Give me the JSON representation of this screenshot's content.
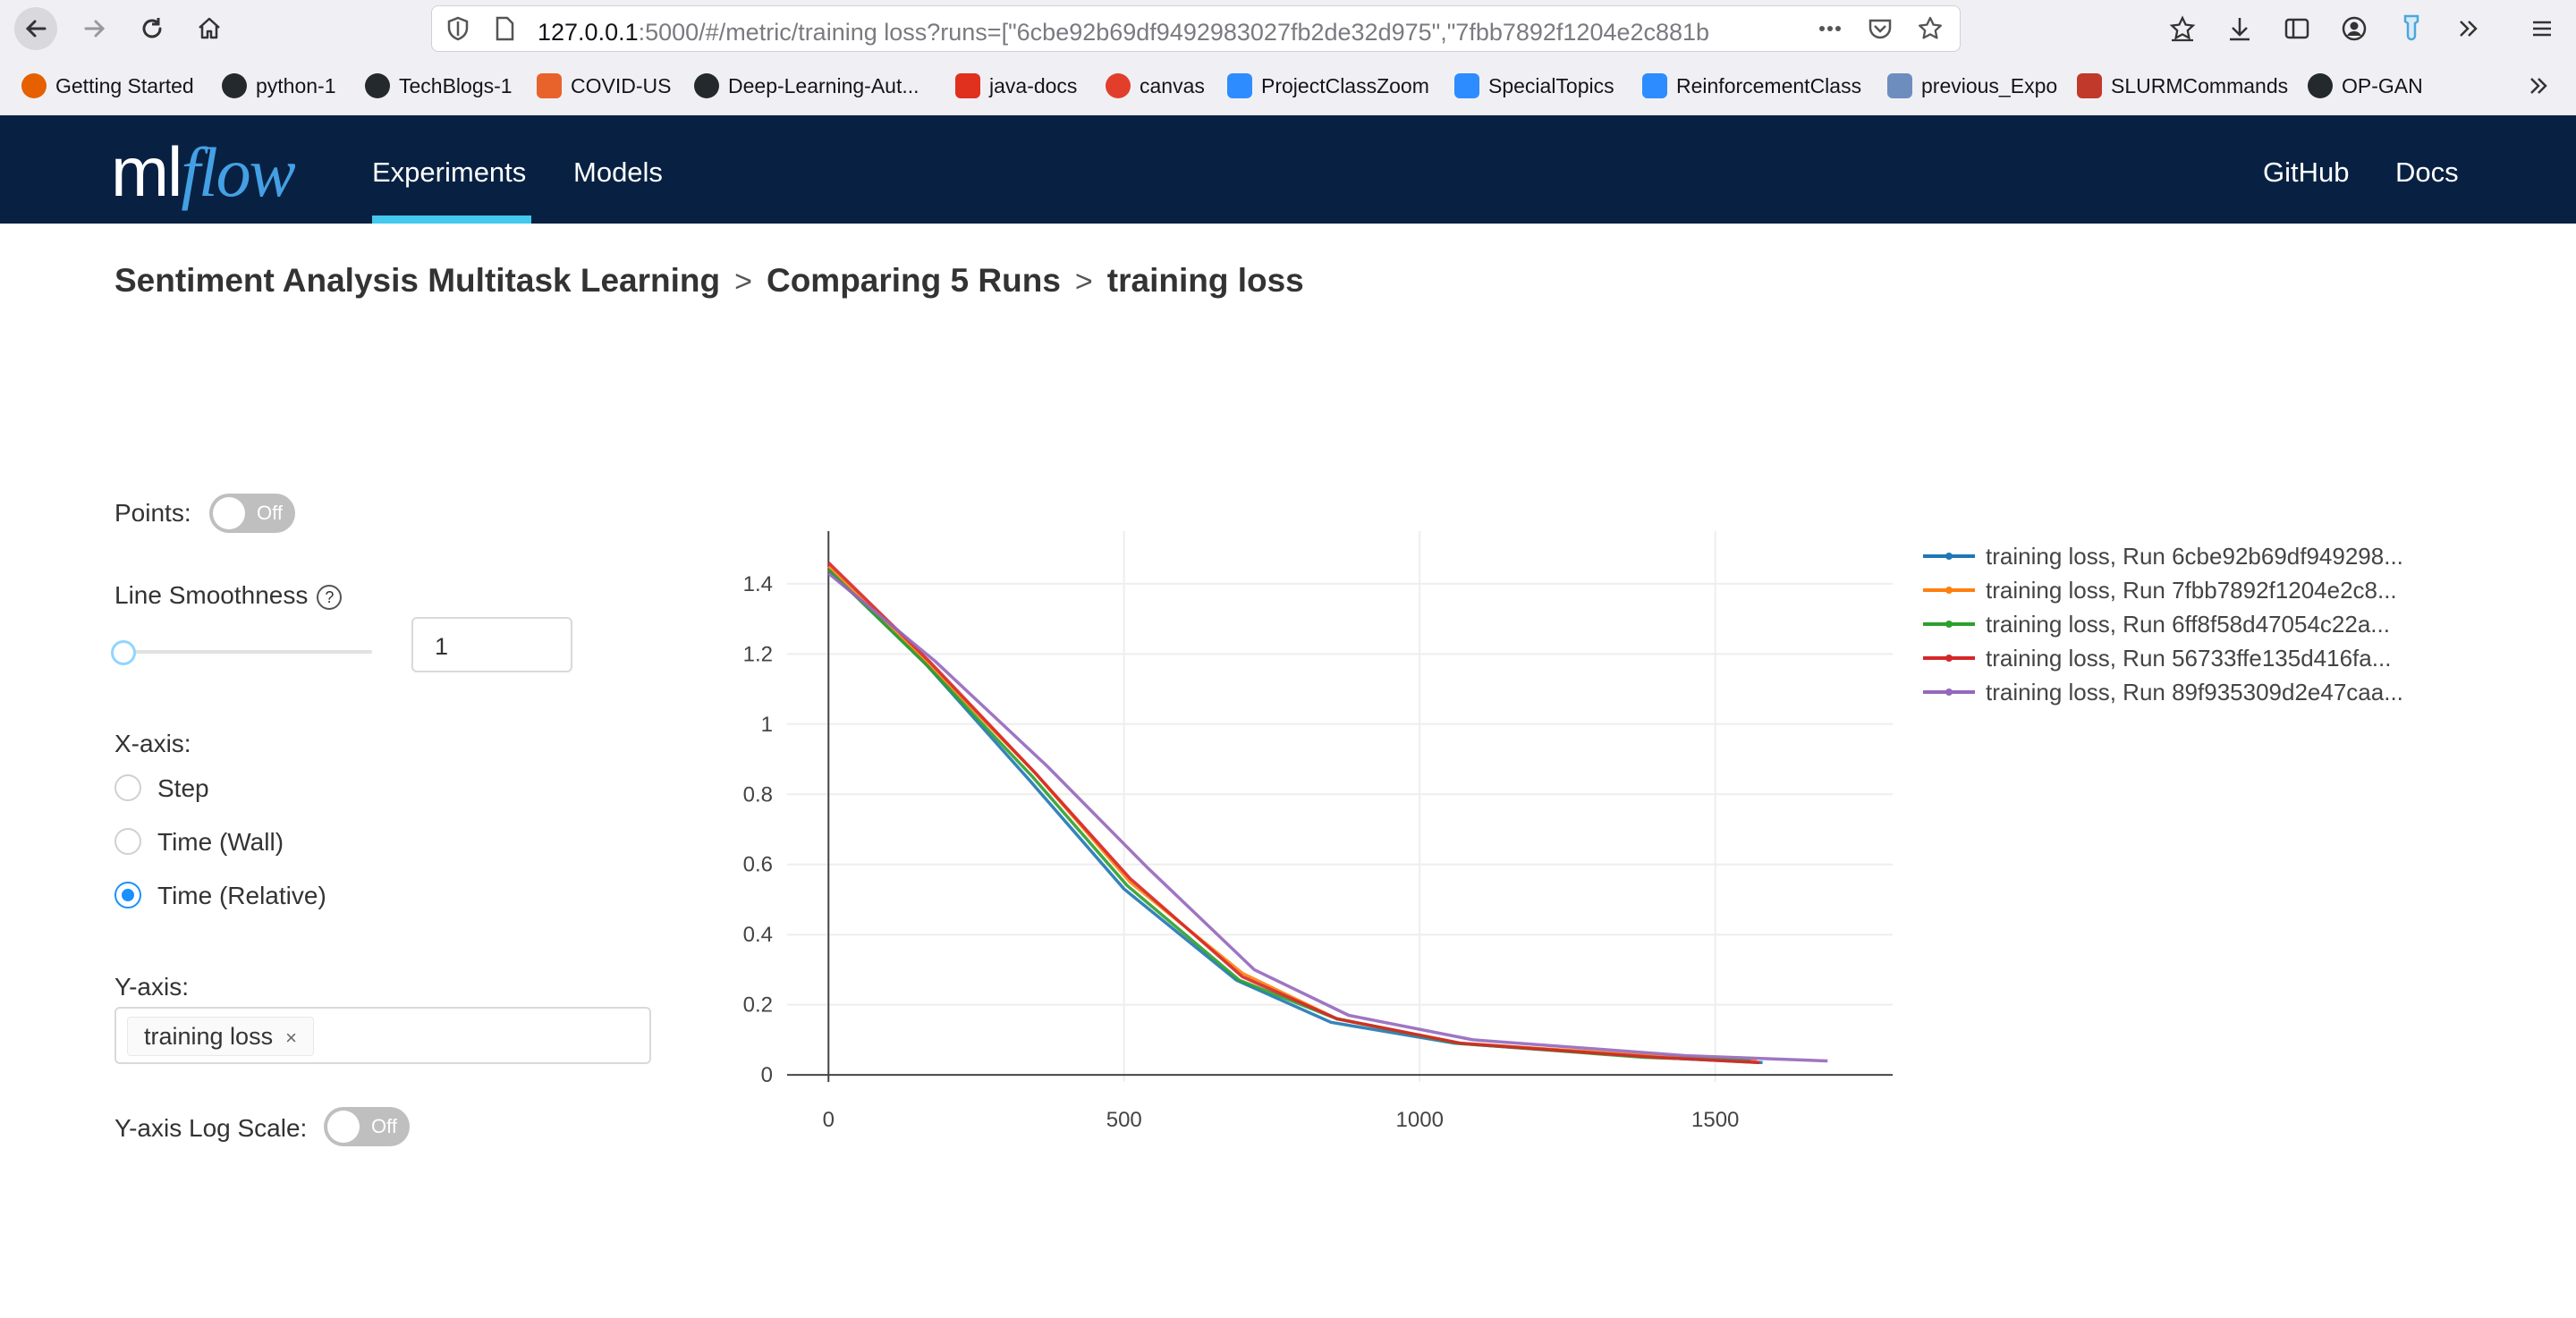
{
  "browser": {
    "url_host": "127.0.0.1",
    "url_rest": ":5000/#/metric/training loss?runs=[\"6cbe92b69df9492983027fb2de32d975\",\"7fbb7892f1204e2c881b",
    "bookmarks": [
      {
        "label": "Getting Started",
        "icon": "firefox-icon",
        "color": "#e66000"
      },
      {
        "label": "python-1",
        "icon": "github-icon",
        "color": "#24292e"
      },
      {
        "label": "TechBlogs-1",
        "icon": "github-icon",
        "color": "#24292e"
      },
      {
        "label": "COVID-US",
        "icon": "lungs-icon",
        "color": "#e8622c"
      },
      {
        "label": "Deep-Learning-Aut...",
        "icon": "github-icon",
        "color": "#24292e"
      },
      {
        "label": "java-docs",
        "icon": "oracle-icon",
        "color": "#e0301e"
      },
      {
        "label": "canvas",
        "icon": "canvas-icon",
        "color": "#e13f2b"
      },
      {
        "label": "ProjectClassZoom",
        "icon": "zoom-icon",
        "color": "#2d8cff"
      },
      {
        "label": "SpecialTopics",
        "icon": "zoom-icon",
        "color": "#2d8cff"
      },
      {
        "label": "ReinforcementClass",
        "icon": "zoom-icon",
        "color": "#2d8cff"
      },
      {
        "label": "previous_Expo",
        "icon": "grid-icon",
        "color": "#6d8dbf"
      },
      {
        "label": "SLURMCommands",
        "icon": "tab-icon",
        "color": "#c0392b"
      },
      {
        "label": "OP-GAN",
        "icon": "github-icon",
        "color": "#24292e"
      }
    ]
  },
  "header": {
    "logo_ml": "ml",
    "logo_flow": "flow",
    "nav": {
      "experiments": "Experiments",
      "models": "Models",
      "github": "GitHub",
      "docs": "Docs"
    },
    "accent": "#43c9ed",
    "background": "#082142"
  },
  "breadcrumb": {
    "experiment": "Sentiment Analysis Multitask Learning",
    "comparison": "Comparing 5 Runs",
    "metric": "training loss",
    "separator": ">"
  },
  "controls": {
    "points_label": "Points:",
    "points_toggle": "Off",
    "smoothness_label": "Line Smoothness",
    "smoothness_value": "1",
    "smoothness_level": 0,
    "help_glyph": "?",
    "xaxis_label": "X-axis:",
    "xaxis_options": [
      "Step",
      "Time (Wall)",
      "Time (Relative)"
    ],
    "xaxis_selected": "Time (Relative)",
    "yaxis_label": "Y-axis:",
    "yaxis_tag": "training loss",
    "tag_remove": "×",
    "logscale_label": "Y-axis Log Scale:",
    "logscale_toggle": "Off"
  },
  "chart_data": {
    "type": "line",
    "xlim": [
      -70,
      1800
    ],
    "ylim": [
      -0.02,
      1.55
    ],
    "xticks": [
      0,
      500,
      1000,
      1500
    ],
    "yticks": [
      0,
      0.2,
      0.4,
      0.6,
      0.8,
      1,
      1.2,
      1.4
    ],
    "ytick_labels": [
      "0",
      "0.2",
      "0.4",
      "0.6",
      "0.8",
      "1",
      "1.2",
      "1.4"
    ],
    "grid": true,
    "legend_position": "right",
    "series": [
      {
        "name": "training loss, Run 6cbe92b69df949298...",
        "color": "#1f77b4",
        "x": [
          0,
          160,
          340,
          500,
          690,
          850,
          1060,
          1400,
          1580
        ],
        "y": [
          1.44,
          1.18,
          0.84,
          0.53,
          0.27,
          0.15,
          0.09,
          0.05,
          0.035
        ]
      },
      {
        "name": "training loss, Run 7fbb7892f1204e2c8...",
        "color": "#ff7f0e",
        "x": [
          0,
          170,
          350,
          510,
          700,
          860,
          1070,
          1390,
          1570
        ],
        "y": [
          1.45,
          1.17,
          0.86,
          0.55,
          0.29,
          0.16,
          0.09,
          0.055,
          0.04
        ]
      },
      {
        "name": "training loss, Run 6ff8f58d47054c22a...",
        "color": "#2ca02c",
        "x": [
          0,
          165,
          345,
          505,
          695,
          860,
          1065,
          1380,
          1560
        ],
        "y": [
          1.44,
          1.17,
          0.85,
          0.54,
          0.27,
          0.16,
          0.09,
          0.05,
          0.04
        ]
      },
      {
        "name": "training loss, Run 56733ffe135d416fa...",
        "color": "#d62728",
        "x": [
          0,
          170,
          350,
          510,
          700,
          860,
          1070,
          1400,
          1575
        ],
        "y": [
          1.46,
          1.18,
          0.86,
          0.56,
          0.28,
          0.16,
          0.09,
          0.05,
          0.035
        ]
      },
      {
        "name": "training loss, Run 89f935309d2e47caa...",
        "color": "#9467bd",
        "x": [
          0,
          180,
          370,
          540,
          720,
          880,
          1090,
          1450,
          1690
        ],
        "y": [
          1.43,
          1.18,
          0.88,
          0.59,
          0.3,
          0.17,
          0.1,
          0.055,
          0.04
        ]
      }
    ]
  }
}
